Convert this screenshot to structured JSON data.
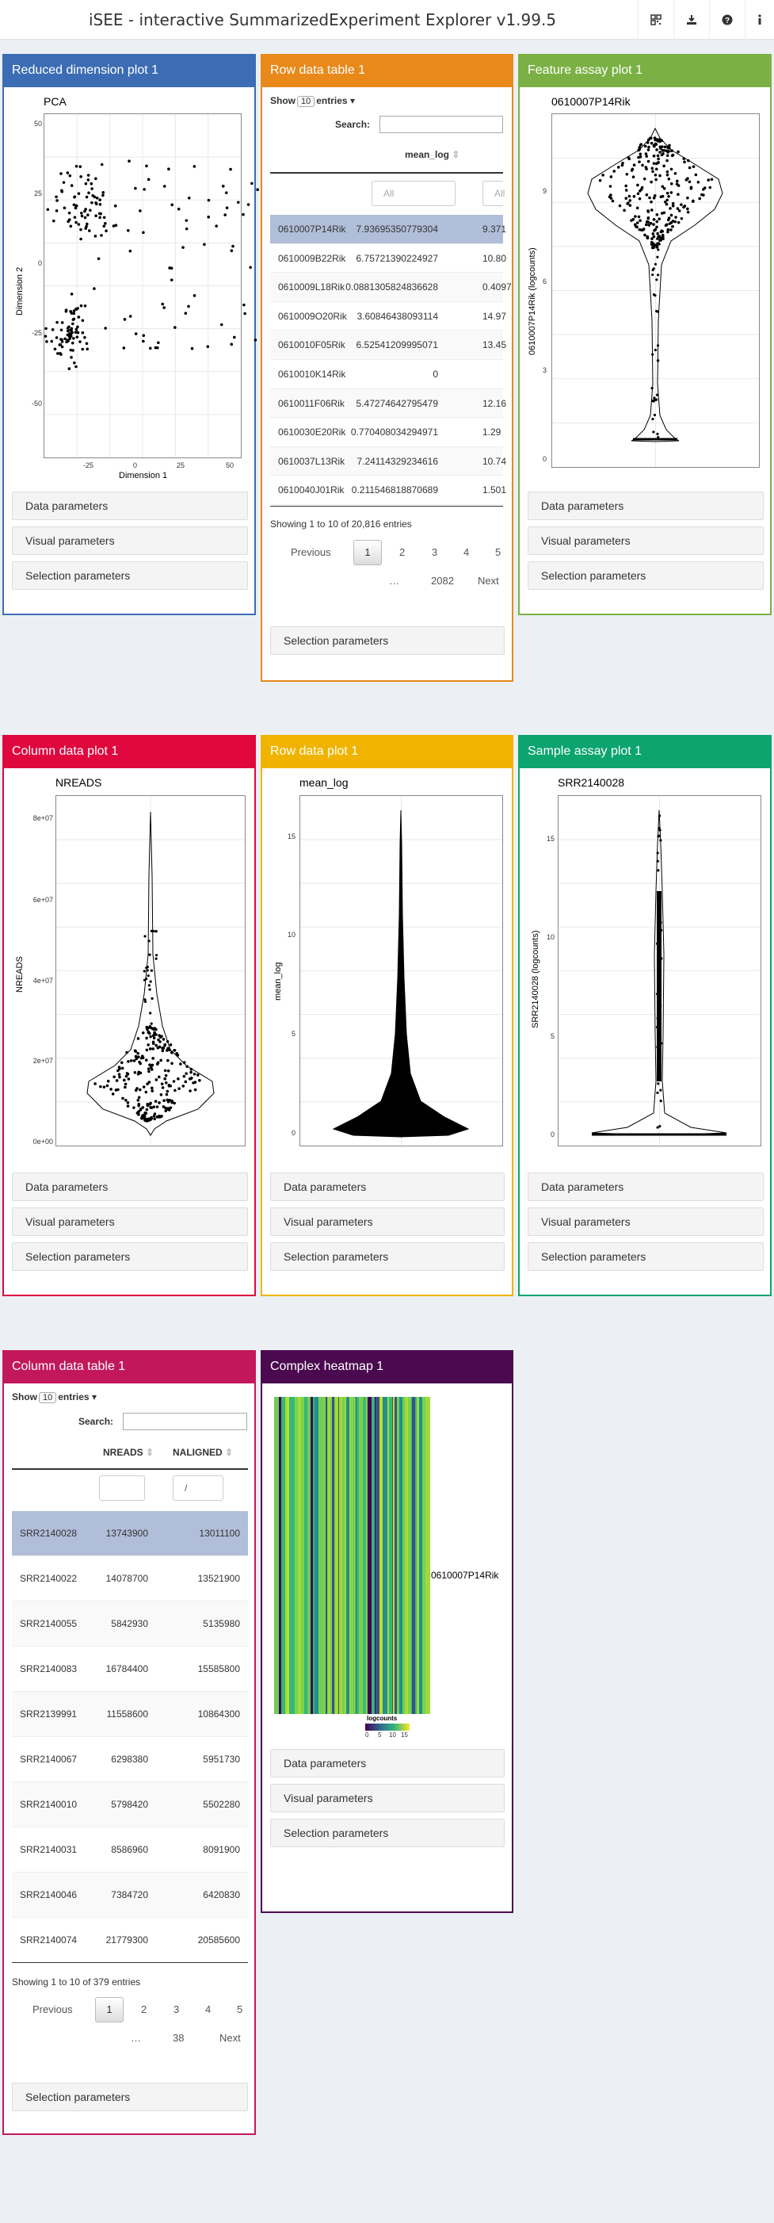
{
  "app": {
    "title": "iSEE - interactive SummarizedExperiment Explorer v1.99.5"
  },
  "nav": {
    "icons": [
      "qrcode-icon",
      "download-icon",
      "question-icon",
      "info-icon"
    ]
  },
  "colors": {
    "reduced": "#3c6db4",
    "rowtable": "#e8891a",
    "featassay": "#7bb144",
    "coldata": "#e0073e",
    "rowdata": "#f0b400",
    "sampleassay": "#0ca46f",
    "coltable": "#c2185b",
    "heatmap": "#4b0a4f"
  },
  "buttons": {
    "data": "Data parameters",
    "visual": "Visual parameters",
    "selection": "Selection parameters"
  },
  "panels": {
    "reduced": {
      "title": "Reduced dimension plot 1",
      "plot_title": "PCA",
      "xlabel": "Dimension 1",
      "ylabel": "Dimension 2",
      "xticks": [
        "-25",
        "0",
        "25",
        "50"
      ],
      "yticks": [
        "50",
        "25",
        "0",
        "-25",
        "-50"
      ]
    },
    "rowtable": {
      "title": "Row data table 1",
      "show": "Show",
      "entries_val": "10",
      "entries": "entries",
      "search": "Search:",
      "col": "mean_log",
      "filter": "All",
      "filter2": "All",
      "rows": [
        [
          "0610007P14Rik",
          "7.93695350779304",
          "9.371"
        ],
        [
          "0610009B22Rik",
          "6.75721390224927",
          "10.80"
        ],
        [
          "0610009L18Rik",
          "0.0881305824836628",
          "0.4097"
        ],
        [
          "0610009O20Rik",
          "3.60846438093114",
          "14.97"
        ],
        [
          "0610010F05Rik",
          "6.52541209995071",
          "13.45"
        ],
        [
          "0610010K14Rik",
          "0",
          ""
        ],
        [
          "0610011F06Rik",
          "5.47274642795479",
          "12.16"
        ],
        [
          "0610030E20Rik",
          "0.770408034294971",
          "1.29"
        ],
        [
          "0610037L13Rik",
          "7.24114329234616",
          "10.74"
        ],
        [
          "0610040J01Rik",
          "0.211546818870689",
          "1.501"
        ]
      ],
      "info": "Showing 1 to 10 of 20,816 entries",
      "pages": [
        "Previous",
        "1",
        "2",
        "3",
        "4",
        "5",
        "…",
        "2082",
        "Next"
      ]
    },
    "featassay": {
      "title": "Feature assay plot 1",
      "plot_title": "0610007P14Rik",
      "ylabel": "0610007P14Rik (logcounts)",
      "yticks": [
        "9",
        "6",
        "3",
        "0"
      ]
    },
    "coldata": {
      "title": "Column data plot 1",
      "plot_title": "NREADS",
      "ylabel": "NREADS",
      "yticks": [
        "8e+07",
        "6e+07",
        "4e+07",
        "2e+07",
        "0e+00"
      ]
    },
    "rowdata": {
      "title": "Row data plot 1",
      "plot_title": "mean_log",
      "ylabel": "mean_log",
      "yticks": [
        "15",
        "10",
        "5",
        "0"
      ]
    },
    "sampleassay": {
      "title": "Sample assay plot 1",
      "plot_title": "SRR2140028",
      "ylabel": "SRR2140028 (logcounts)",
      "yticks": [
        "15",
        "10",
        "5",
        "0"
      ]
    },
    "coltable": {
      "title": "Column data table 1",
      "show": "Show",
      "entries_val": "10",
      "entries": "entries",
      "search": "Search:",
      "col1": "NREADS",
      "col2": "NALIGNED",
      "filter2": "/",
      "rows": [
        [
          "SRR2140028",
          "13743900",
          "13011100"
        ],
        [
          "SRR2140022",
          "14078700",
          "13521900"
        ],
        [
          "SRR2140055",
          "5842930",
          "5135980"
        ],
        [
          "SRR2140083",
          "16784400",
          "15585800"
        ],
        [
          "SRR2139991",
          "11558600",
          "10864300"
        ],
        [
          "SRR2140067",
          "6298380",
          "5951730"
        ],
        [
          "SRR2140010",
          "5798420",
          "5502280"
        ],
        [
          "SRR2140031",
          "8586960",
          "8091900"
        ],
        [
          "SRR2140046",
          "7384720",
          "6420830"
        ],
        [
          "SRR2140074",
          "21779300",
          "20585600"
        ]
      ],
      "info": "Showing 1 to 10 of 379 entries",
      "pages": [
        "Previous",
        "1",
        "2",
        "3",
        "4",
        "5",
        "…",
        "38",
        "Next"
      ]
    },
    "heatmap": {
      "title": "Complex heatmap 1",
      "row_label": "0610007P14Rik",
      "legend_title": "logcounts",
      "legend_ticks": [
        "0",
        "5",
        "10",
        "15"
      ]
    }
  }
}
